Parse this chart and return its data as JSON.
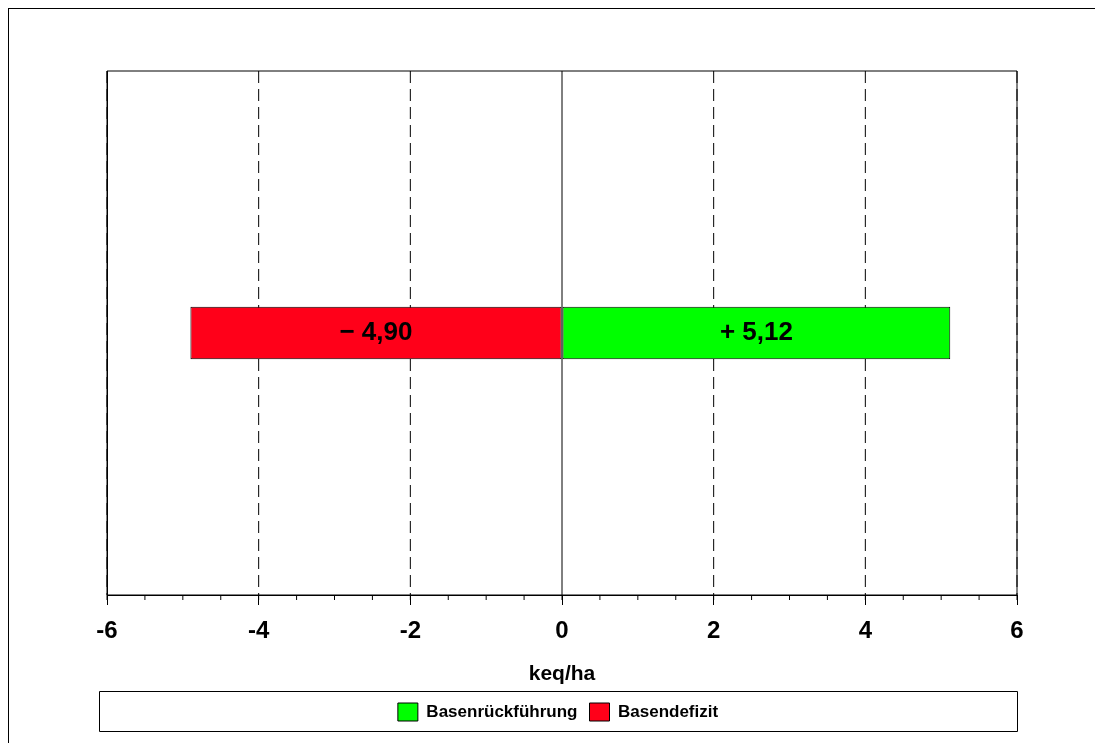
{
  "chart_data": {
    "type": "bar",
    "orientation": "horizontal",
    "stacked": true,
    "categories": [
      null
    ],
    "series": [
      {
        "name": "Basenrückführung",
        "color": "#00ff00",
        "values": [
          5.12
        ],
        "value_labels": [
          "+ 5,12"
        ]
      },
      {
        "name": "Basendefizit",
        "color": "#ff0019",
        "values": [
          -4.9
        ],
        "value_labels": [
          "− 4,90"
        ]
      }
    ],
    "xlabel": "keq/ha",
    "xlim": [
      -6,
      6
    ],
    "xticks": [
      -6,
      -4,
      -2,
      0,
      2,
      4,
      6
    ],
    "grid": "x",
    "legend": "bottom"
  }
}
